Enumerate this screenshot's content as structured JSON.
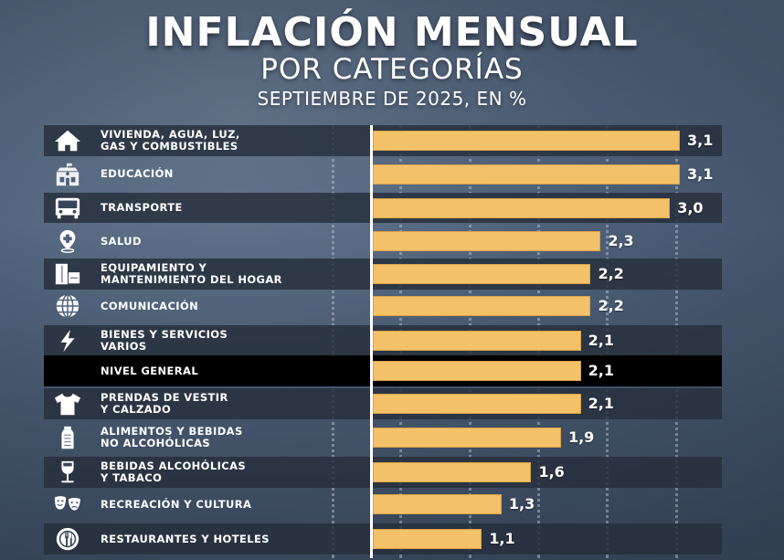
{
  "header": {
    "title": "INFLACIÓN MENSUAL",
    "subtitle": "POR CATEGORÍAS",
    "period": "SEPTIEMBRE DE 2025, EN %"
  },
  "colors": {
    "bar": "#f3c168",
    "highlight_row": "#000000",
    "dark_row": "#262e3a"
  },
  "chart_data": {
    "type": "bar",
    "orientation": "horizontal",
    "title": "INFLACIÓN MENSUAL POR CATEGORÍAS",
    "subtitle": "SEPTIEMBRE DE 2025, EN %",
    "xlabel": "",
    "ylabel": "",
    "xlim": [
      0,
      3.3
    ],
    "grid": true,
    "categories": [
      {
        "label": "VIVIENDA, AGUA, LUZ,\nGAS Y COMBUSTIBLES",
        "value": 3.1,
        "display": "3,1",
        "icon": "house-icon"
      },
      {
        "label": "EDUCACIÓN",
        "value": 3.1,
        "display": "3,1",
        "icon": "school-icon"
      },
      {
        "label": "TRANSPORTE",
        "value": 3.0,
        "display": "3,0",
        "icon": "bus-icon"
      },
      {
        "label": "SALUD",
        "value": 2.3,
        "display": "2,3",
        "icon": "health-pin-icon"
      },
      {
        "label": "EQUIPAMIENTO Y\nMANTENIMIENTO DEL HOGAR",
        "value": 2.2,
        "display": "2,2",
        "icon": "furniture-icon"
      },
      {
        "label": "COMUNICACIÓN",
        "value": 2.2,
        "display": "2,2",
        "icon": "globe-icon"
      },
      {
        "label": "BIENES Y SERVICIOS\nVARIOS",
        "value": 2.1,
        "display": "2,1",
        "icon": "lightning-icon"
      },
      {
        "label": "NIVEL GENERAL",
        "value": 2.1,
        "display": "2,1",
        "icon": "",
        "highlight": true
      },
      {
        "label": "PRENDAS DE VESTIR\nY CALZADO",
        "value": 2.1,
        "display": "2,1",
        "icon": "tshirt-icon"
      },
      {
        "label": "ALIMENTOS Y BEBIDAS\nNO ALCOHÓLICAS",
        "value": 1.9,
        "display": "1,9",
        "icon": "bottle-icon"
      },
      {
        "label": "BEBIDAS ALCOHÓLICAS\nY TABACO",
        "value": 1.6,
        "display": "1,6",
        "icon": "wine-glass-icon"
      },
      {
        "label": "RECREACIÓN Y CULTURA",
        "value": 1.3,
        "display": "1,3",
        "icon": "theater-masks-icon"
      },
      {
        "label": "RESTAURANTES Y HOTELES",
        "value": 1.1,
        "display": "1,1",
        "icon": "plate-fork-knife-icon"
      }
    ]
  }
}
